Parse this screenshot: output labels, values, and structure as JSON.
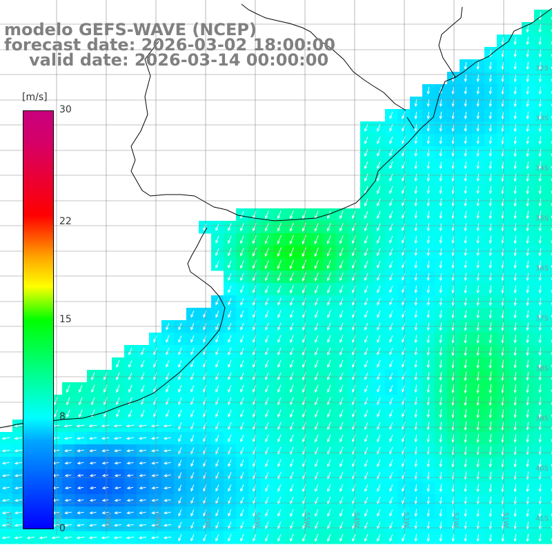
{
  "header": {
    "model_line": "modelo GEFS-WAVE (NCEP)",
    "forecast_line": "forecast date: 2026-03-02 18:00:00",
    "valid_line": "valid date: 2026-03-14 00:00:00"
  },
  "colorbar": {
    "unit": "[m/s]",
    "ticks": [
      {
        "label": "30",
        "value": 30
      },
      {
        "label": "22",
        "value": 22
      },
      {
        "label": "15",
        "value": 15
      },
      {
        "label": "8",
        "value": 8
      },
      {
        "label": "0",
        "value": 0
      }
    ],
    "range": [
      0,
      30
    ],
    "colors": [
      "#0000ff",
      "#00a6ff",
      "#00ffff",
      "#00ff00",
      "#ffff00",
      "#ffa500",
      "#ff0000",
      "#c8007d"
    ]
  },
  "map": {
    "lat_labels": [
      "32S",
      "33S",
      "34S",
      "35S",
      "36S",
      "37S",
      "38S",
      "39S",
      "40S",
      "41S"
    ],
    "lon_labels": [
      "61W",
      "60W",
      "59W",
      "58W",
      "57W",
      "56W",
      "55W",
      "54W",
      "53W",
      "52W",
      "51W",
      "50W"
    ],
    "lat_range": [
      -41.5,
      -31
    ],
    "lon_range": [
      -61,
      -50
    ],
    "grid": true,
    "land_color": "#ffffff",
    "coastline_color": "#000000",
    "arrow_color": "#ffffff",
    "field": "wind speed",
    "dominant_direction": "north-east to south-west"
  }
}
